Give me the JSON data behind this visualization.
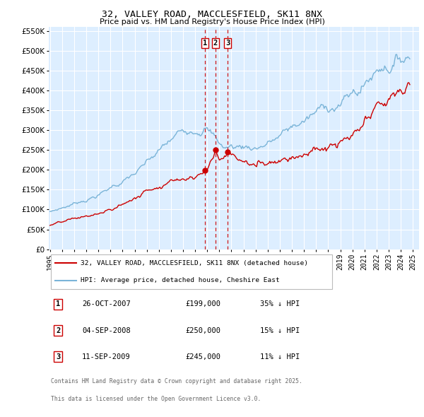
{
  "title": "32, VALLEY ROAD, MACCLESFIELD, SK11 8NX",
  "subtitle": "Price paid vs. HM Land Registry's House Price Index (HPI)",
  "ylim": [
    0,
    560000
  ],
  "yticks": [
    0,
    50000,
    100000,
    150000,
    200000,
    250000,
    300000,
    350000,
    400000,
    450000,
    500000,
    550000
  ],
  "ytick_labels": [
    "£0",
    "£50K",
    "£100K",
    "£150K",
    "£200K",
    "£250K",
    "£300K",
    "£350K",
    "£400K",
    "£450K",
    "£500K",
    "£550K"
  ],
  "background_color": "#ffffff",
  "plot_bg_color": "#ddeeff",
  "grid_color": "#ffffff",
  "hpi_color": "#7ab4d8",
  "price_color": "#cc0000",
  "vline_color": "#cc0000",
  "sales": [
    {
      "label": "1",
      "date": "26-OCT-2007",
      "price": 199000,
      "x": 2007.81,
      "pct": "35%",
      "dir": "↓"
    },
    {
      "label": "2",
      "date": "04-SEP-2008",
      "price": 250000,
      "x": 2008.67,
      "pct": "15%",
      "dir": "↓"
    },
    {
      "label": "3",
      "date": "11-SEP-2009",
      "price": 245000,
      "x": 2009.69,
      "pct": "11%",
      "dir": "↓"
    }
  ],
  "legend_line1": "32, VALLEY ROAD, MACCLESFIELD, SK11 8NX (detached house)",
  "legend_line2": "HPI: Average price, detached house, Cheshire East",
  "footer1": "Contains HM Land Registry data © Crown copyright and database right 2025.",
  "footer2": "This data is licensed under the Open Government Licence v3.0.",
  "xlim": [
    1994.9,
    2025.5
  ],
  "xticks": [
    1995,
    1996,
    1997,
    1998,
    1999,
    2000,
    2001,
    2002,
    2003,
    2004,
    2005,
    2006,
    2007,
    2008,
    2009,
    2010,
    2011,
    2012,
    2013,
    2014,
    2015,
    2016,
    2017,
    2018,
    2019,
    2020,
    2021,
    2022,
    2023,
    2024,
    2025
  ]
}
